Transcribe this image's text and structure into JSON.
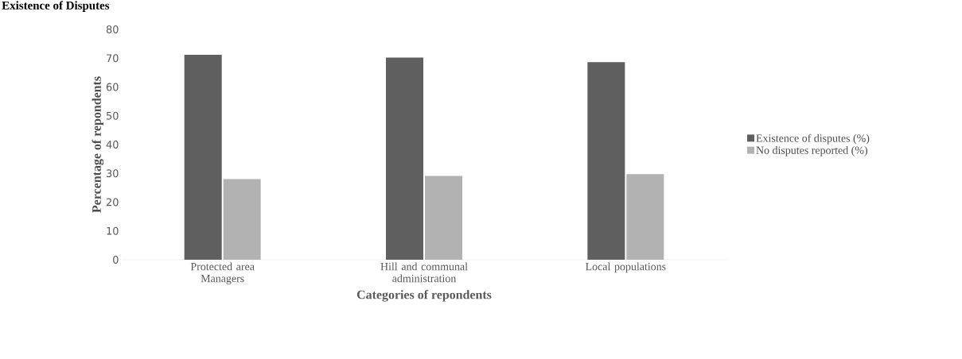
{
  "chart_data": {
    "type": "bar",
    "title": "Existence of Disputes",
    "xlabel": "Categories of repondents",
    "ylabel": "Percentage of repondents",
    "categories": [
      "Protected area Managers",
      "Hill and communal administration",
      "Local populations"
    ],
    "series": [
      {
        "name": "Existence of disputes (%)",
        "color": "#5f5f5f",
        "values": [
          71.2,
          70.2,
          68.6
        ]
      },
      {
        "name": "No disputes reported (%)",
        "color": "#b2b2b2",
        "values": [
          28.0,
          29.1,
          29.7
        ]
      }
    ],
    "ylim": [
      0,
      80
    ],
    "yticks": [
      0,
      10,
      20,
      30,
      40,
      50,
      60,
      70,
      80
    ],
    "legend": "right"
  }
}
